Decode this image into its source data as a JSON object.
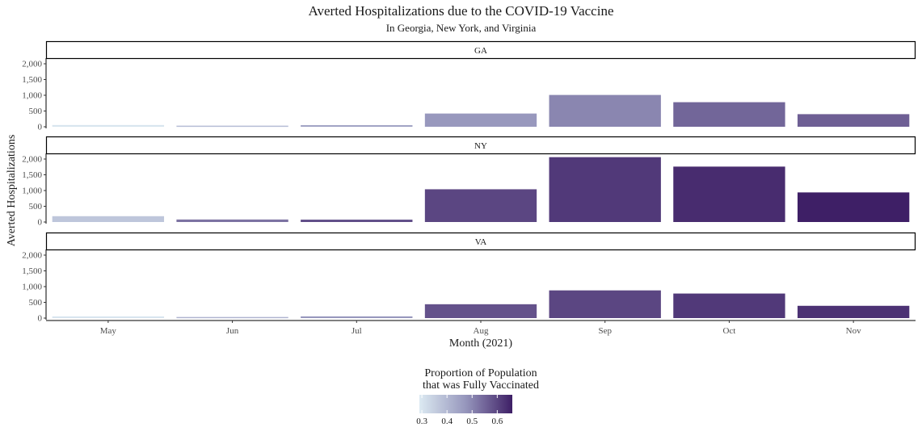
{
  "chart_data": {
    "type": "bar",
    "title": "Averted Hospitalizations due to the COVID-19 Vaccine",
    "subtitle": "In Georgia, New York, and Virginia",
    "xlabel": "Month (2021)",
    "ylabel": "Averted Hospitalizations",
    "categories": [
      "May",
      "Jun",
      "Jul",
      "Aug",
      "Sep",
      "Oct",
      "Nov"
    ],
    "ylim": [
      0,
      2200
    ],
    "yticks": [
      0,
      500,
      1000,
      1500,
      2000
    ],
    "ytick_labels": [
      "0",
      "500",
      "1,000",
      "1,500",
      "2,000"
    ],
    "grid": false,
    "facets": [
      {
        "name": "GA",
        "values": [
          55,
          35,
          50,
          420,
          1010,
          780,
          400
        ],
        "fill_values": [
          0.3,
          0.39,
          0.45,
          0.47,
          0.5,
          0.55,
          0.56
        ]
      },
      {
        "name": "NY",
        "values": [
          185,
          80,
          75,
          1040,
          2060,
          1760,
          940
        ],
        "fill_values": [
          0.37,
          0.53,
          0.59,
          0.6,
          0.62,
          0.64,
          0.66
        ]
      },
      {
        "name": "VA",
        "values": [
          55,
          35,
          55,
          440,
          880,
          780,
          390
        ],
        "fill_values": [
          0.3,
          0.41,
          0.47,
          0.58,
          0.6,
          0.62,
          0.63
        ]
      }
    ],
    "legend": {
      "title_line1": "Proportion of Population",
      "title_line2": "that was Fully Vaccinated",
      "placement": "bottom",
      "range": [
        0.29,
        0.66
      ],
      "ticks": [
        0.3,
        0.4,
        0.5,
        0.6
      ],
      "tick_labels": [
        "0.3",
        "0.4",
        "0.5",
        "0.6"
      ],
      "color_low": "#dceaf2",
      "color_high": "#3e1f66"
    }
  }
}
